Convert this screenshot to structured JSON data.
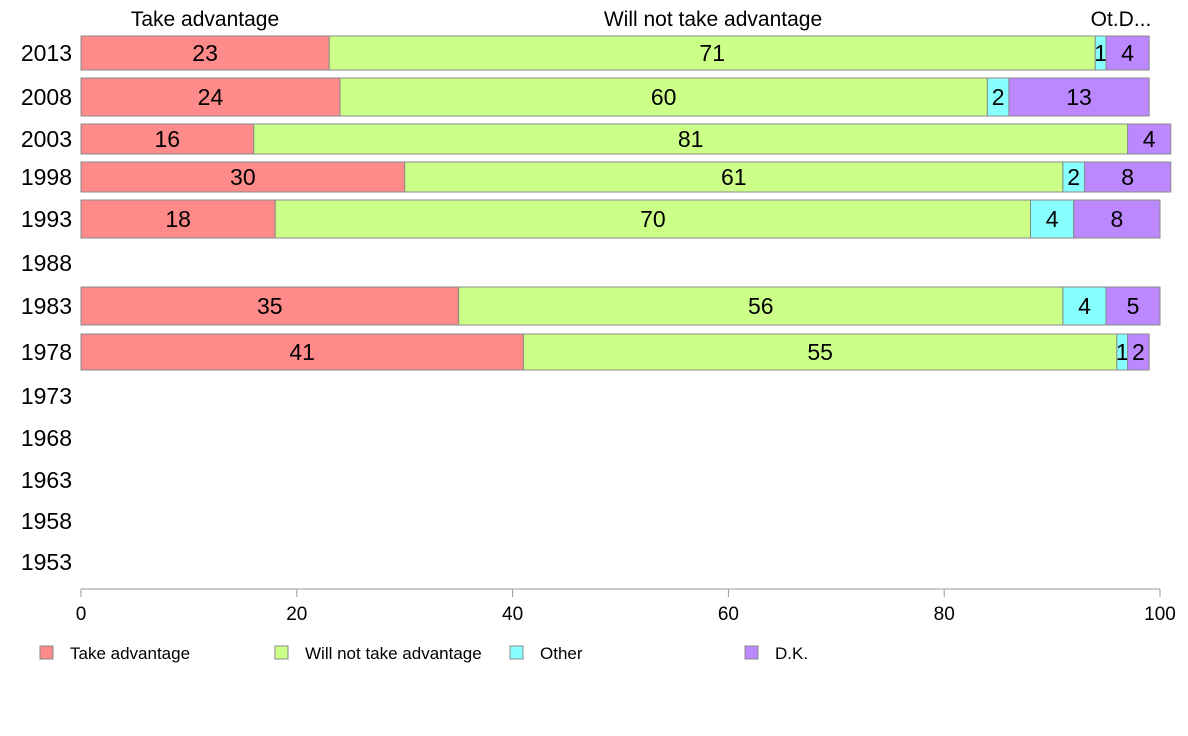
{
  "chart_data": {
    "type": "bar",
    "orientation": "horizontal",
    "stacked": true,
    "categories": [
      "2013",
      "2008",
      "2003",
      "1998",
      "1993",
      "1988",
      "1983",
      "1978",
      "1973",
      "1968",
      "1963",
      "1958",
      "1953"
    ],
    "series": [
      {
        "name": "Take advantage",
        "color": "#ff8a8a",
        "values": [
          23,
          24,
          16,
          30,
          18,
          null,
          35,
          41,
          null,
          null,
          null,
          null,
          null
        ]
      },
      {
        "name": "Will not take advantage",
        "color": "#ccff88",
        "values": [
          71,
          60,
          81,
          61,
          70,
          null,
          56,
          55,
          null,
          null,
          null,
          null,
          null
        ]
      },
      {
        "name": "Other",
        "color": "#88ffff",
        "values": [
          1,
          2,
          0,
          2,
          4,
          null,
          4,
          1,
          null,
          null,
          null,
          null,
          null
        ]
      },
      {
        "name": "D.K.",
        "color": "#bb88ff",
        "values": [
          4,
          13,
          4,
          8,
          8,
          null,
          5,
          2,
          null,
          null,
          null,
          null,
          null
        ]
      }
    ],
    "column_headers": [
      "Take advantage",
      "Will not take advantage",
      "Ot.D..."
    ],
    "xlim": [
      0,
      100
    ],
    "xticks": [
      0,
      20,
      40,
      60,
      80,
      100
    ],
    "grid": false,
    "legend_position": "bottom"
  }
}
